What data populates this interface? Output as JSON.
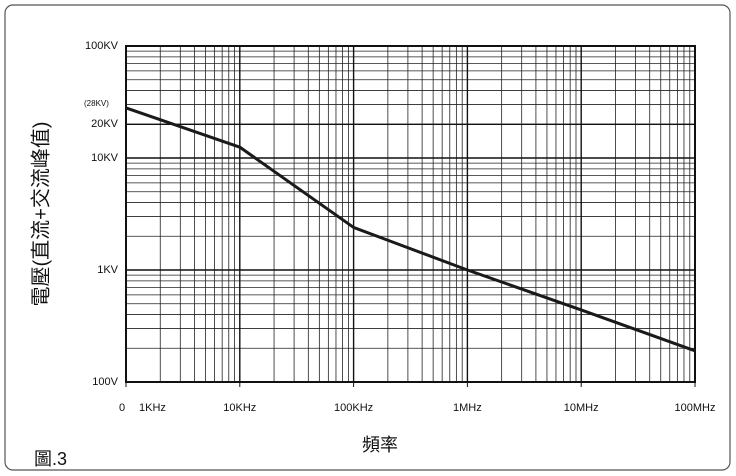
{
  "chart_data": {
    "type": "line",
    "x_label": "頻率",
    "y_label": "電壓(直流+交流峰值)",
    "figure_label": "圖.3",
    "annotation": "(28KV)",
    "origin_label": "0",
    "x": [
      1000,
      10000,
      100000,
      1000000,
      10000000,
      100000000
    ],
    "values": [
      28000,
      12500,
      2400,
      1000,
      440,
      190
    ],
    "color": "#1a1a1a",
    "xscale": "log",
    "yscale": "log",
    "grid": true,
    "xlim": [
      1000,
      100000000
    ],
    "xticks": [
      {
        "value": 1000,
        "label": "1KHz"
      },
      {
        "value": 10000,
        "label": "10KHz"
      },
      {
        "value": 100000,
        "label": "100KHz"
      },
      {
        "value": 1000000,
        "label": "1MHz"
      },
      {
        "value": 10000000,
        "label": "10MHz"
      },
      {
        "value": 100000000,
        "label": "100MHz"
      }
    ],
    "ylim": [
      100,
      100000
    ],
    "yticks": [
      {
        "value": 100,
        "label": "100V"
      },
      {
        "value": 1000,
        "label": "1KV"
      },
      {
        "value": 10000,
        "label": "10KV"
      },
      {
        "value": 20000,
        "label": "20KV"
      },
      {
        "value": 100000,
        "label": "100KV"
      }
    ]
  }
}
